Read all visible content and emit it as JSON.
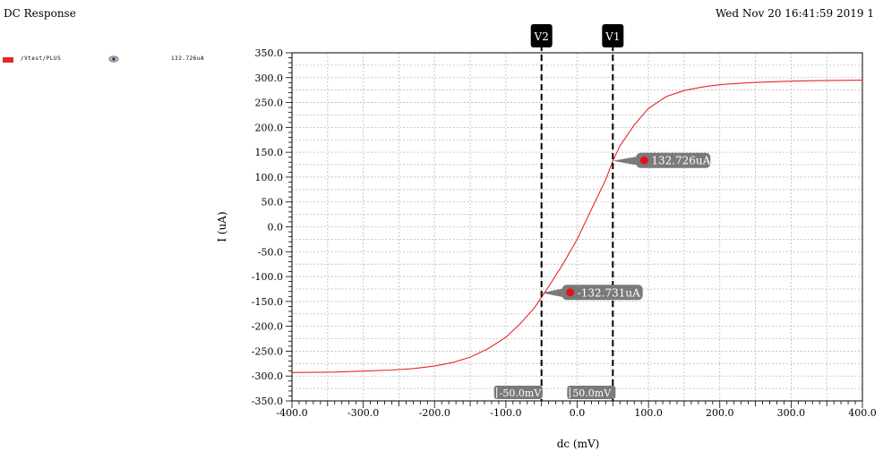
{
  "header": {
    "title": "DC Response",
    "timestamp": "Wed Nov 20 16:41:59 2019  1"
  },
  "legend": {
    "label": "/Vtest/PLUS",
    "value": "132.726uA",
    "icon": "eye-icon"
  },
  "colors": {
    "trace": "#e8262b",
    "marker_bg": "#7a7a7a",
    "cursor_flag": "#000000",
    "grid": "#bbbbbb"
  },
  "chart_data": {
    "type": "line",
    "title": "",
    "xlabel": "dc (mV)",
    "ylabel": "I (uA)",
    "xlim": [
      -400,
      400
    ],
    "ylim": [
      -350,
      350
    ],
    "xticks": [
      "-400.0",
      "-300.0",
      "-200.0",
      "-100.0",
      "0.0",
      "100.0",
      "200.0",
      "300.0",
      "400.0"
    ],
    "yticks": [
      "350.0",
      "300.0",
      "250.0",
      "200.0",
      "150.0",
      "100.0",
      "50.0",
      "0.0",
      "-50.0",
      "-100.0",
      "-150.0",
      "-200.0",
      "-250.0",
      "-300.0",
      "-350.0"
    ],
    "grid": true,
    "legend_position": "top-left",
    "series": [
      {
        "name": "/Vtest/PLUS",
        "x": [
          -400,
          -340,
          -300,
          -260,
          -230,
          -200,
          -175,
          -150,
          -125,
          -100,
          -80,
          -60,
          -40,
          -20,
          0,
          20,
          40,
          50,
          60,
          80,
          100,
          125,
          150,
          175,
          200,
          230,
          260,
          300,
          340,
          400
        ],
        "y": [
          -293,
          -292,
          -290,
          -288,
          -285,
          -280,
          -273,
          -262,
          -245,
          -222,
          -195,
          -163,
          -120,
          -75,
          -25,
          35,
          95,
          132.7,
          163,
          205,
          238,
          262,
          274,
          281,
          286,
          289,
          291,
          293,
          294,
          295
        ]
      }
    ],
    "cursors": [
      {
        "name": "V2",
        "x": -50,
        "label": "-50.0mV"
      },
      {
        "name": "V1",
        "x": 50,
        "label": "50.0mV"
      }
    ],
    "markers": [
      {
        "x": 50,
        "y": 132.726,
        "label": "132.726uA"
      },
      {
        "x": -50,
        "y": -132.731,
        "label": "-132.731uA"
      }
    ]
  }
}
